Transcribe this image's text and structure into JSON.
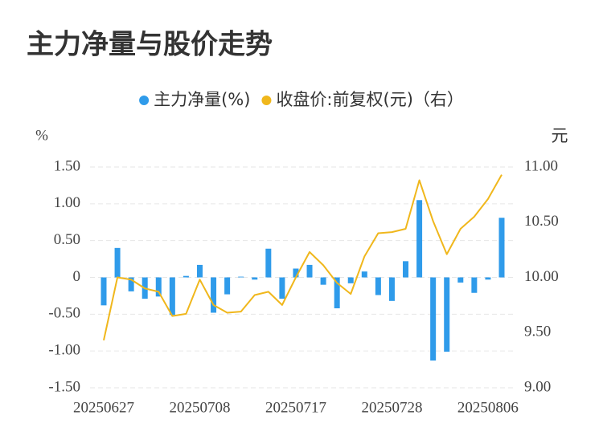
{
  "chart_data": {
    "type": "bar-line",
    "title": "主力净量与股价走势",
    "ylabel": "%",
    "y2label": "元",
    "categories": [
      "20250627",
      null,
      null,
      null,
      null,
      null,
      null,
      "20250708",
      null,
      null,
      null,
      null,
      null,
      null,
      "20250717",
      null,
      null,
      null,
      null,
      null,
      null,
      "20250728",
      null,
      null,
      null,
      null,
      null,
      null,
      "20250806",
      null
    ],
    "series": [
      {
        "name": "主力净量(%)",
        "type": "bar",
        "color": "#2f9bea",
        "values": [
          -0.38,
          0.4,
          -0.19,
          -0.29,
          -0.26,
          -0.51,
          0.02,
          0.17,
          -0.48,
          -0.23,
          0.01,
          -0.03,
          0.39,
          -0.29,
          0.12,
          0.17,
          -0.1,
          -0.42,
          -0.08,
          0.08,
          -0.24,
          -0.32,
          0.22,
          1.05,
          -1.13,
          -1.01,
          -0.07,
          -0.21,
          -0.03,
          0.81
        ]
      },
      {
        "name": "收盘价:前复权(元)（右）",
        "type": "line",
        "axis": "y2",
        "color": "#f0b71c",
        "values": [
          9.43,
          10.0,
          9.98,
          9.9,
          9.87,
          9.65,
          9.67,
          9.98,
          9.75,
          9.68,
          9.69,
          9.84,
          9.87,
          9.75,
          10.0,
          10.23,
          10.11,
          9.95,
          9.85,
          10.19,
          10.4,
          10.41,
          10.44,
          10.88,
          10.51,
          10.21,
          10.44,
          10.55,
          10.71,
          10.93
        ]
      }
    ],
    "ylim": [
      -1.5,
      1.5
    ],
    "yticks": [
      {
        "value": 1.5,
        "label": "1.50"
      },
      {
        "value": 1,
        "label": "1.00"
      },
      {
        "value": 0.5,
        "label": "0.50"
      },
      0,
      {
        "value": -0.5,
        "label": "-0.50"
      },
      {
        "value": -1,
        "label": "-1.00"
      },
      {
        "value": -1.5,
        "label": "-1.50"
      }
    ],
    "y2lim": [
      9,
      11
    ],
    "y2ticks": [
      {
        "value": 11,
        "label": "11.00"
      },
      {
        "value": 10.5,
        "label": "10.50"
      },
      {
        "value": 10,
        "label": "10.00"
      },
      {
        "value": 9.5,
        "label": "9.50"
      },
      {
        "value": 9,
        "label": "9.00"
      }
    ],
    "grid": true,
    "legend": "top"
  }
}
